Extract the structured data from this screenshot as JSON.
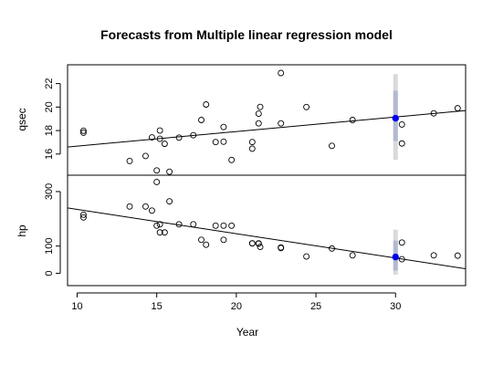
{
  "chart_data": {
    "type": "scatter",
    "title": "Forecasts from Multiple linear regression model",
    "xlabel": "Year",
    "x_ticks": [
      10,
      15,
      20,
      25,
      30
    ],
    "xlim": [
      9.4,
      34.4
    ],
    "panels": [
      {
        "name": "qsec",
        "ylabel": "qsec",
        "ylim": [
          14.2,
          23.6
        ],
        "y_ticks": [
          16,
          18,
          20,
          22
        ],
        "points": [
          [
            10.4,
            17.98
          ],
          [
            10.4,
            17.82
          ],
          [
            13.3,
            15.41
          ],
          [
            14.3,
            15.84
          ],
          [
            14.7,
            17.42
          ],
          [
            15.0,
            14.6
          ],
          [
            15.2,
            18.0
          ],
          [
            15.2,
            17.3
          ],
          [
            15.5,
            16.87
          ],
          [
            15.8,
            14.5
          ],
          [
            16.4,
            17.4
          ],
          [
            17.3,
            17.6
          ],
          [
            17.8,
            18.9
          ],
          [
            18.1,
            20.22
          ],
          [
            18.7,
            17.02
          ],
          [
            19.2,
            18.3
          ],
          [
            19.2,
            17.05
          ],
          [
            19.7,
            15.5
          ],
          [
            21.0,
            16.46
          ],
          [
            21.0,
            17.02
          ],
          [
            21.4,
            19.44
          ],
          [
            21.4,
            18.61
          ],
          [
            21.5,
            20.01
          ],
          [
            22.8,
            22.9
          ],
          [
            22.8,
            18.61
          ],
          [
            24.4,
            20.0
          ],
          [
            26.0,
            16.7
          ],
          [
            27.3,
            18.9
          ],
          [
            30.4,
            18.52
          ],
          [
            30.4,
            16.9
          ],
          [
            32.4,
            19.47
          ],
          [
            33.9,
            19.9
          ]
        ],
        "trend": [
          [
            9.4,
            16.6
          ],
          [
            34.4,
            19.7
          ]
        ],
        "forecast": {
          "x": 30,
          "y": 19.05,
          "lo80": 17.1,
          "hi80": 21.4,
          "lo95": 15.5,
          "hi95": 22.8
        }
      },
      {
        "name": "hp",
        "ylabel": "hp",
        "ylim": [
          -45,
          360
        ],
        "y_ticks": [
          0,
          100,
          300
        ],
        "points": [
          [
            10.4,
            205
          ],
          [
            10.4,
            215
          ],
          [
            13.3,
            245
          ],
          [
            14.3,
            245
          ],
          [
            14.7,
            230
          ],
          [
            15.0,
            335
          ],
          [
            15.0,
            175
          ],
          [
            15.2,
            180
          ],
          [
            15.2,
            150
          ],
          [
            15.5,
            150
          ],
          [
            15.8,
            264
          ],
          [
            16.4,
            180
          ],
          [
            17.3,
            180
          ],
          [
            17.8,
            123
          ],
          [
            18.1,
            105
          ],
          [
            18.7,
            175
          ],
          [
            19.2,
            175
          ],
          [
            19.2,
            123
          ],
          [
            19.7,
            175
          ],
          [
            21.0,
            110
          ],
          [
            21.0,
            110
          ],
          [
            21.4,
            110
          ],
          [
            21.4,
            109
          ],
          [
            21.5,
            97
          ],
          [
            22.8,
            93
          ],
          [
            22.8,
            95
          ],
          [
            24.4,
            62
          ],
          [
            26.0,
            91
          ],
          [
            27.3,
            66
          ],
          [
            30.4,
            113
          ],
          [
            30.4,
            52
          ],
          [
            32.4,
            66
          ],
          [
            33.9,
            65
          ]
        ],
        "trend": [
          [
            9.4,
            240
          ],
          [
            34.4,
            17
          ]
        ],
        "forecast": {
          "x": 30,
          "y": 60,
          "lo80": 10,
          "hi80": 120,
          "lo95": -5,
          "hi95": 160
        }
      }
    ],
    "colors": {
      "point_stroke": "#000000",
      "forecast_point": "#0000ee",
      "interval_80": "#b3bad2",
      "interval_95": "#d9d9d9",
      "line": "#000000"
    }
  }
}
